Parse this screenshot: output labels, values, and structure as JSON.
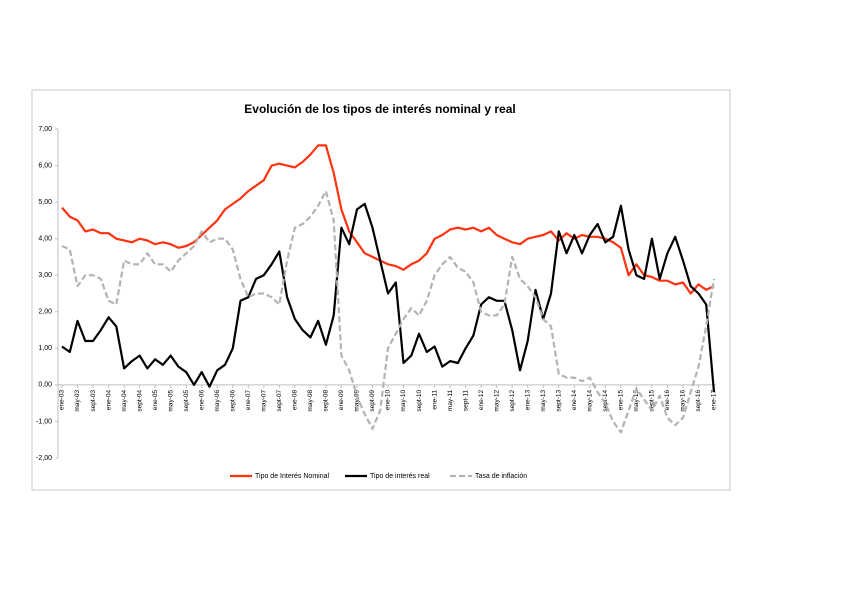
{
  "chart_data": {
    "type": "line",
    "title": "Evolución de los tipos de interés nominal y real",
    "categories": [
      "ene-03",
      null,
      "may-03",
      null,
      "sept-03",
      null,
      "ene-04",
      null,
      "may-04",
      null,
      "sept-04",
      null,
      "ene-05",
      null,
      "may-05",
      null,
      "sept-05",
      null,
      "ene-06",
      null,
      "may-06",
      null,
      "sept-06",
      null,
      "ene-07",
      null,
      "may-07",
      null,
      "sept-07",
      null,
      "ene-08",
      null,
      "may-08",
      null,
      "sept-08",
      null,
      "ene-09",
      null,
      "may-09",
      null,
      "sept-09",
      null,
      "ene-10",
      null,
      "may-10",
      null,
      "sept-10",
      null,
      "ene-11",
      null,
      "may-11",
      null,
      "sept-11",
      null,
      "ene-12",
      null,
      "may-12",
      null,
      "sept-12",
      null,
      "ene-13",
      null,
      "may-13",
      null,
      "sept-13",
      null,
      "ene-14",
      null,
      "may-14",
      null,
      "sept-14",
      null,
      "ene-15",
      null,
      "may-15",
      null,
      "sept-15",
      null,
      "ene-16",
      null,
      "may-16",
      null,
      "sept-16",
      null,
      "ene-17"
    ],
    "series": [
      {
        "name": "Tipo de Interés Nominal",
        "color": "#ff3311",
        "dash": false,
        "values": [
          4.85,
          4.6,
          4.5,
          4.2,
          4.25,
          4.15,
          4.15,
          4.0,
          3.95,
          3.9,
          4.0,
          3.95,
          3.85,
          3.9,
          3.85,
          3.75,
          3.8,
          3.9,
          4.1,
          4.3,
          4.5,
          4.8,
          4.95,
          5.1,
          5.3,
          5.45,
          5.6,
          6.0,
          6.05,
          6.0,
          5.95,
          6.1,
          6.3,
          6.55,
          6.55,
          5.8,
          4.8,
          4.2,
          3.9,
          3.6,
          3.5,
          3.4,
          3.3,
          3.25,
          3.15,
          3.3,
          3.4,
          3.6,
          4.0,
          4.1,
          4.25,
          4.3,
          4.25,
          4.3,
          4.2,
          4.3,
          4.1,
          4.0,
          3.9,
          3.85,
          4.0,
          4.05,
          4.1,
          4.2,
          3.95,
          4.15,
          4.0,
          4.1,
          4.05,
          4.05,
          4.0,
          3.9,
          3.75,
          3.0,
          3.3,
          3.0,
          2.95,
          2.85,
          2.85,
          2.75,
          2.8,
          2.5,
          2.75,
          2.6,
          2.7
        ]
      },
      {
        "name": "Tipo de interés real",
        "color": "#000000",
        "dash": false,
        "values": [
          1.05,
          0.9,
          1.75,
          1.2,
          1.2,
          1.5,
          1.85,
          1.6,
          0.45,
          0.65,
          0.8,
          0.45,
          0.7,
          0.55,
          0.8,
          0.5,
          0.35,
          0.0,
          0.35,
          -0.05,
          0.4,
          0.55,
          1.0,
          2.3,
          2.4,
          2.9,
          3.0,
          3.3,
          3.65,
          2.4,
          1.8,
          1.5,
          1.3,
          1.75,
          1.1,
          1.9,
          4.3,
          3.85,
          4.8,
          4.95,
          4.3,
          3.4,
          2.5,
          2.8,
          0.6,
          0.8,
          1.4,
          0.9,
          1.05,
          0.5,
          0.65,
          0.6,
          1.0,
          1.35,
          2.2,
          2.4,
          2.3,
          2.3,
          1.5,
          0.4,
          1.2,
          2.6,
          1.8,
          2.5,
          4.2,
          3.6,
          4.1,
          3.6,
          4.1,
          4.4,
          3.9,
          4.05,
          4.9,
          3.7,
          3.0,
          2.9,
          4.0,
          2.9,
          3.6,
          4.05,
          3.4,
          2.7,
          2.5,
          2.2,
          -0.2
        ]
      },
      {
        "name": "Tasa de inflación",
        "color": "#b3b3b3",
        "dash": true,
        "values": [
          3.8,
          3.7,
          2.7,
          3.0,
          3.0,
          2.9,
          2.3,
          2.2,
          3.4,
          3.3,
          3.3,
          3.6,
          3.3,
          3.3,
          3.1,
          3.4,
          3.6,
          3.8,
          4.2,
          3.9,
          4.0,
          4.0,
          3.7,
          2.9,
          2.4,
          2.5,
          2.5,
          2.4,
          2.2,
          3.4,
          4.3,
          4.4,
          4.6,
          4.9,
          5.3,
          4.5,
          0.8,
          0.4,
          -0.3,
          -0.8,
          -1.2,
          -0.7,
          1.0,
          1.4,
          1.8,
          2.1,
          1.9,
          2.3,
          3.0,
          3.3,
          3.5,
          3.2,
          3.1,
          2.8,
          2.0,
          1.9,
          1.9,
          2.2,
          3.5,
          2.9,
          2.7,
          2.4,
          1.8,
          1.6,
          0.3,
          0.2,
          0.2,
          0.1,
          0.2,
          -0.2,
          -0.5,
          -1.0,
          -1.3,
          -0.7,
          -0.1,
          -0.4,
          -0.7,
          -0.3,
          -0.9,
          -1.1,
          -0.9,
          -0.2,
          0.5,
          1.6,
          2.9
        ]
      }
    ],
    "ylim": [
      -2,
      7
    ],
    "yticks": [
      {
        "value": -2,
        "label": "-2,00"
      },
      {
        "value": -1,
        "label": "-1,00"
      },
      {
        "value": 0,
        "label": "0,00"
      },
      {
        "value": 1,
        "label": "1,00"
      },
      {
        "value": 2,
        "label": "2,00"
      },
      {
        "value": 3,
        "label": "3,00"
      },
      {
        "value": 4,
        "label": "4,00"
      },
      {
        "value": 5,
        "label": "5,00"
      },
      {
        "value": 6,
        "label": "6,00"
      },
      {
        "value": 7,
        "label": "7,00"
      }
    ],
    "grid": false,
    "legend": "bottom"
  }
}
